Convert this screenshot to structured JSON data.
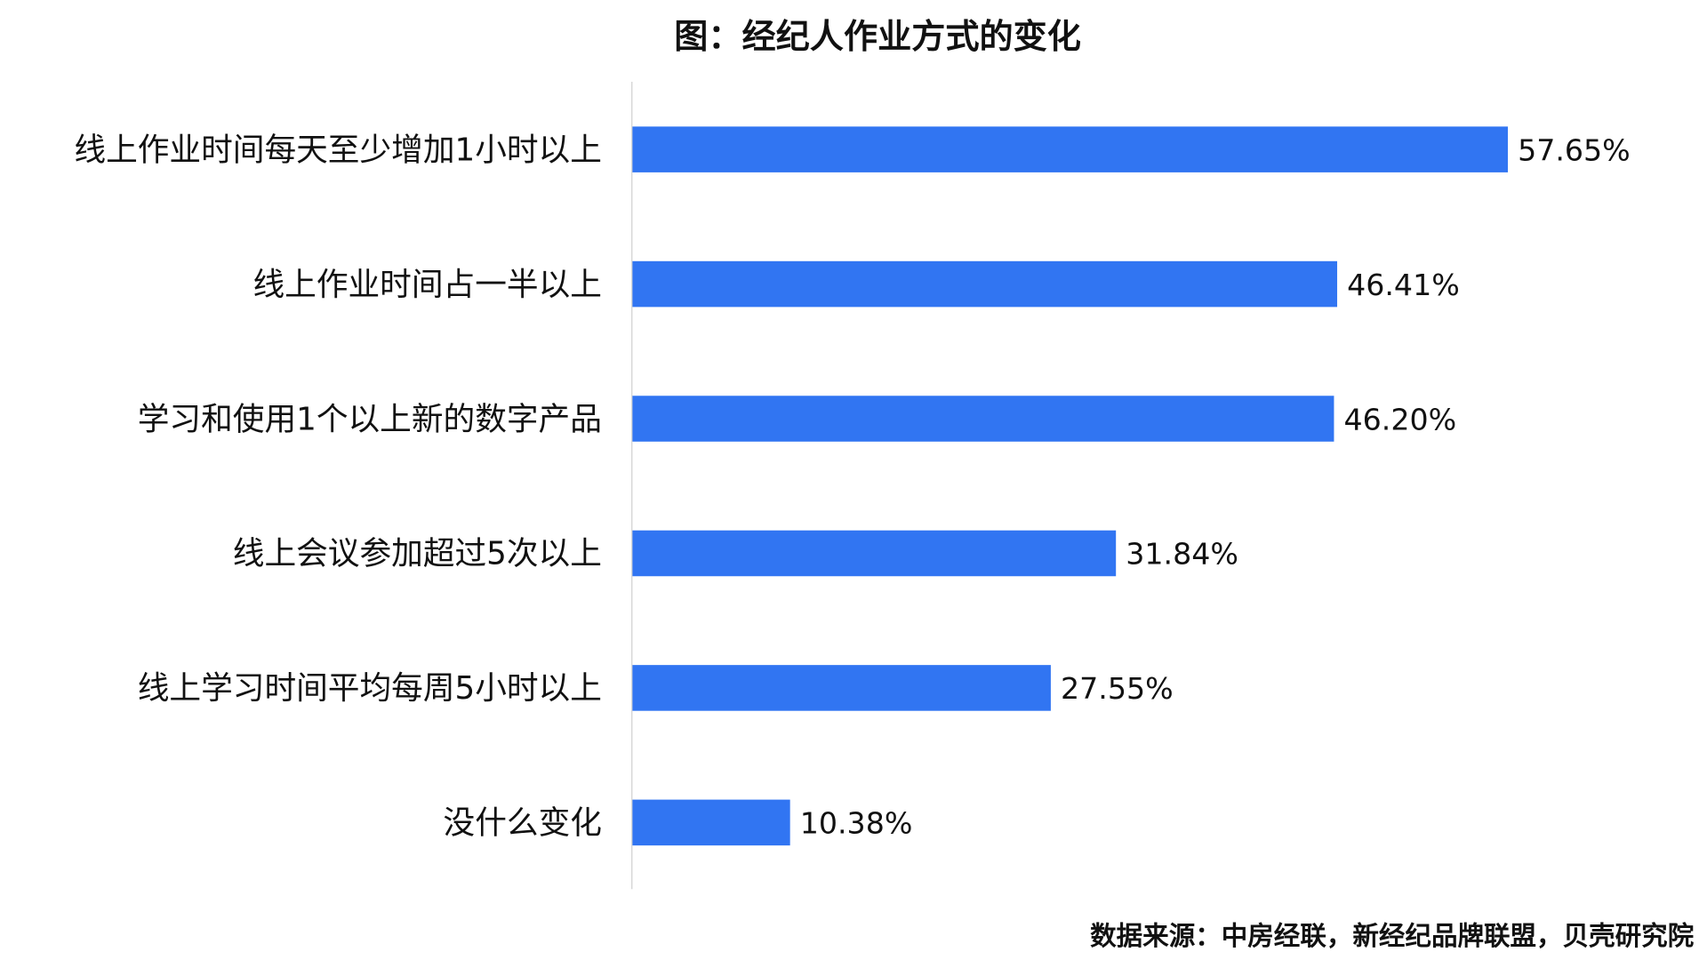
{
  "chart_data": {
    "type": "bar",
    "orientation": "horizontal",
    "title": "图：经纪人作业方式的变化",
    "categories": [
      "线上作业时间每天至少增加1小时以上",
      "线上作业时间占一半以上",
      "学习和使用1个以上新的数字产品",
      "线上会议参加超过5次以上",
      "线上学习时间平均每周5小时以上",
      "没什么变化"
    ],
    "values": [
      57.65,
      46.41,
      46.2,
      31.84,
      27.55,
      10.38
    ],
    "labels": [
      "57.65%",
      "46.41%",
      "46.20%",
      "31.84%",
      "27.55%",
      "10.38%"
    ],
    "unit": "%",
    "xlim": [
      0,
      57.65
    ],
    "grid": false,
    "bar_color": "#3175F2",
    "source": "数据来源：中房经联，新经纪品牌联盟，贝壳研究院"
  }
}
